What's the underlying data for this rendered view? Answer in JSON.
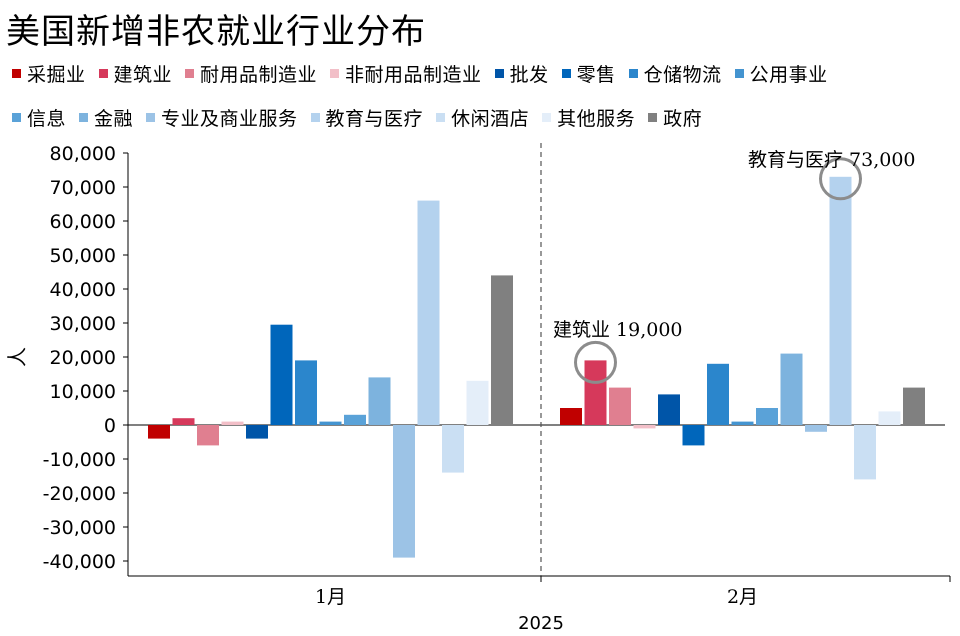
{
  "title": "美国新增非农就业行业分布",
  "legend_rows": [
    [
      0,
      1,
      2,
      3,
      4,
      5,
      6,
      7
    ],
    [
      8,
      9,
      10,
      11,
      12,
      13,
      14
    ]
  ],
  "chart_data": {
    "type": "bar",
    "title": "美国新增非农就业行业分布",
    "ylabel": "人",
    "xlabel": "2025",
    "categories": [
      "1月",
      "2月"
    ],
    "ylim": [
      -40000,
      80000
    ],
    "yticks": [
      80000,
      70000,
      60000,
      50000,
      40000,
      30000,
      20000,
      10000,
      0,
      -10000,
      -20000,
      -30000,
      -40000
    ],
    "ytick_labels": [
      "80,000",
      "70,000",
      "60,000",
      "50,000",
      "40,000",
      "30,000",
      "20,000",
      "10,000",
      "0",
      "-10,000",
      "-20,000",
      "-30,000",
      "-40,000"
    ],
    "grid": false,
    "legend_position": "top",
    "series": [
      {
        "name": "采掘业",
        "color": "#c00000",
        "values": [
          -4000,
          5000
        ]
      },
      {
        "name": "建筑业",
        "color": "#d6395b",
        "values": [
          2000,
          19000
        ]
      },
      {
        "name": "耐用品制造业",
        "color": "#e07f90",
        "values": [
          -6000,
          11000
        ]
      },
      {
        "name": "非耐用品制造业",
        "color": "#f2bfc8",
        "values": [
          1000,
          -1000
        ]
      },
      {
        "name": "批发",
        "color": "#0055a8",
        "values": [
          -4000,
          9000
        ]
      },
      {
        "name": "零售",
        "color": "#0066bb",
        "values": [
          29500,
          -6000
        ]
      },
      {
        "name": "仓储物流",
        "color": "#2b86cc",
        "values": [
          19000,
          18000
        ]
      },
      {
        "name": "公用事业",
        "color": "#4494d0",
        "values": [
          1000,
          1000
        ]
      },
      {
        "name": "信息",
        "color": "#5aa2d8",
        "values": [
          3000,
          5000
        ]
      },
      {
        "name": "金融",
        "color": "#7db3de",
        "values": [
          14000,
          21000
        ]
      },
      {
        "name": "专业及商业服务",
        "color": "#9cc3e6",
        "values": [
          -39000,
          -2000
        ]
      },
      {
        "name": "教育与医疗",
        "color": "#b4d2ee",
        "values": [
          66000,
          73000
        ]
      },
      {
        "name": "休闲酒店",
        "color": "#cadff3",
        "values": [
          -14000,
          -16000
        ]
      },
      {
        "name": "其他服务",
        "color": "#e4eef9",
        "values": [
          13000,
          4000
        ]
      },
      {
        "name": "政府",
        "color": "#808080",
        "values": [
          44000,
          11000
        ]
      }
    ],
    "annotations": [
      {
        "text": "建筑业 19,000",
        "series": 1,
        "category": 1
      },
      {
        "text": "教育与医疗 73,000",
        "series": 11,
        "category": 1
      }
    ]
  }
}
